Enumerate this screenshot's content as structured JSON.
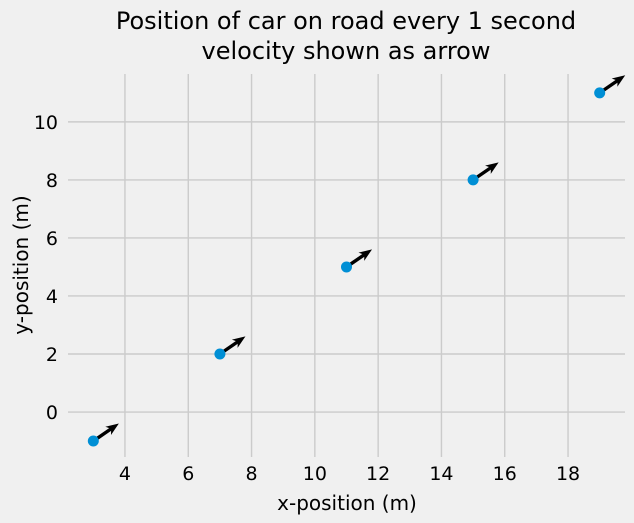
{
  "chart_data": {
    "type": "scatter",
    "title_line1": "Position of car on road every 1 second",
    "title_line2": "velocity shown as arrow",
    "xlabel": "x-position (m)",
    "ylabel": "y-position (m)",
    "points": [
      {
        "x": 3,
        "y": -1
      },
      {
        "x": 7,
        "y": 2
      },
      {
        "x": 11,
        "y": 5
      },
      {
        "x": 15,
        "y": 8
      },
      {
        "x": 19,
        "y": 11
      }
    ],
    "arrow_direction": {
      "dx": 4,
      "dy": 3
    },
    "xticks": [
      4,
      6,
      8,
      10,
      12,
      14,
      16,
      18
    ],
    "yticks": [
      0,
      2,
      4,
      6,
      8,
      10
    ],
    "xlim": [
      2.2,
      19.8
    ],
    "ylim": [
      -1.55,
      11.65
    ],
    "grid": true,
    "legend": "none",
    "colors": {
      "background": "#f0f0f0",
      "grid": "#cbcbcb",
      "point": "#008fd5",
      "arrow": "#000000",
      "text": "#000000"
    }
  }
}
